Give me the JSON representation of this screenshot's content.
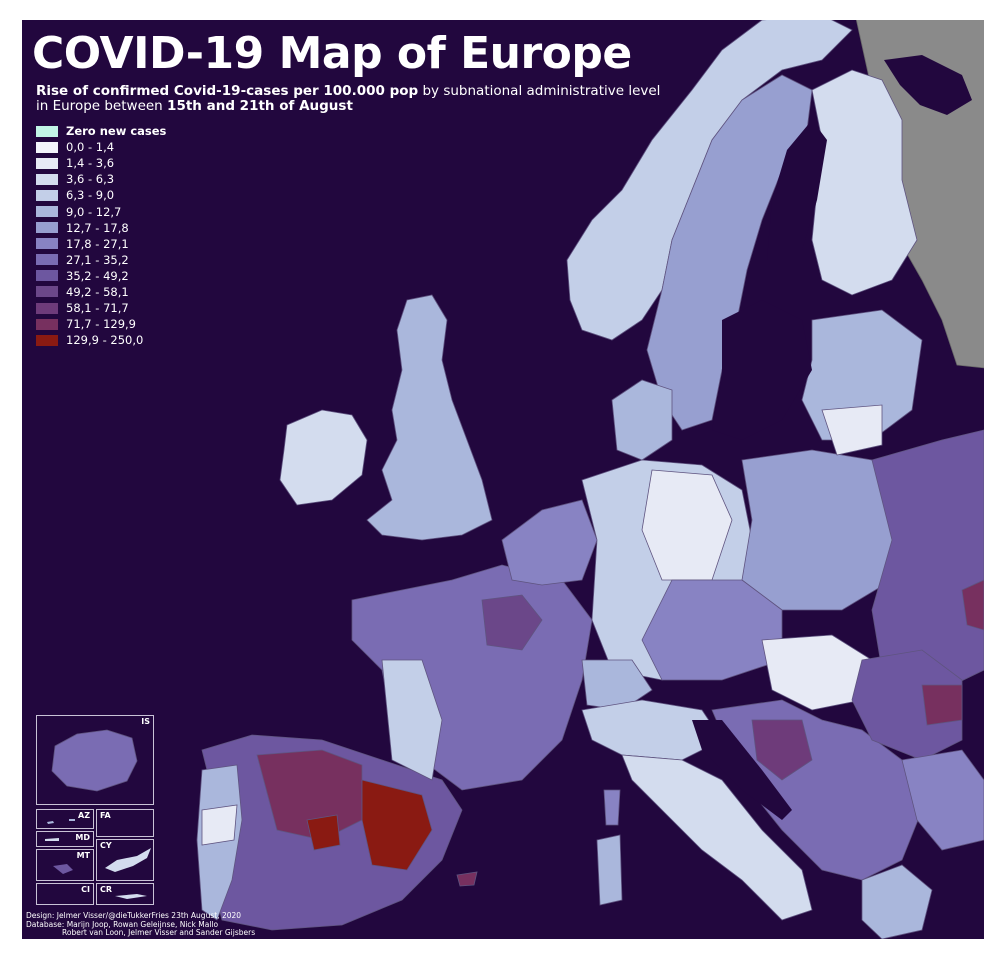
{
  "title": "COVID-19 Map of Europe",
  "subtitle": {
    "part1": "Rise of confirmed Covid-19-cases per 100.000 pop",
    "part2": " by subnational administrative level",
    "part3": "in Europe between ",
    "part4": "15th and 21th of August"
  },
  "legend": [
    {
      "label": "Zero new cases",
      "color": "#c2f5e6"
    },
    {
      "label": "0,0 - 1,4",
      "color": "#f3f4fb"
    },
    {
      "label": "1,4 - 3,6",
      "color": "#e7eaf5"
    },
    {
      "label": "3,6 - 6,3",
      "color": "#d3dcee"
    },
    {
      "label": "6,3 - 9,0",
      "color": "#c3cfe8"
    },
    {
      "label": "9,0 - 12,7",
      "color": "#aab7dc"
    },
    {
      "label": "12,7 - 17,8",
      "color": "#979fd0"
    },
    {
      "label": "17,8 - 27,1",
      "color": "#8883c3"
    },
    {
      "label": "27,1 - 35,2",
      "color": "#7a6cb3"
    },
    {
      "label": "35,2 - 49,2",
      "color": "#6d57a0"
    },
    {
      "label": "49,2 - 58,1",
      "color": "#6b4789"
    },
    {
      "label": "58,1 - 71,7",
      "color": "#6e3b7a"
    },
    {
      "label": "71,7 - 129,9",
      "color": "#77305f"
    },
    {
      "label": "129,9 - 250,0",
      "color": "#8a1a12"
    }
  ],
  "insets": {
    "iceland": "IS",
    "azores": "AZ",
    "faroe": "FA",
    "madeira": "MD",
    "cyprus": "CY",
    "malta": "MT",
    "channel_islands": "CI",
    "crete": "CR"
  },
  "credits": {
    "line1": "Design: Jelmer Visser/@dieTukkerFries 23th August, 2020",
    "line2": "Database: Marijn Joop, Rowan Geleijnse, Nick Mallo",
    "line3": "Robert van Loon, Jelmer Visser and Sander Gijsbers"
  },
  "colors": {
    "sea": "#22073e",
    "outside_data": "#8a8a8a",
    "border": "#5f5480"
  }
}
